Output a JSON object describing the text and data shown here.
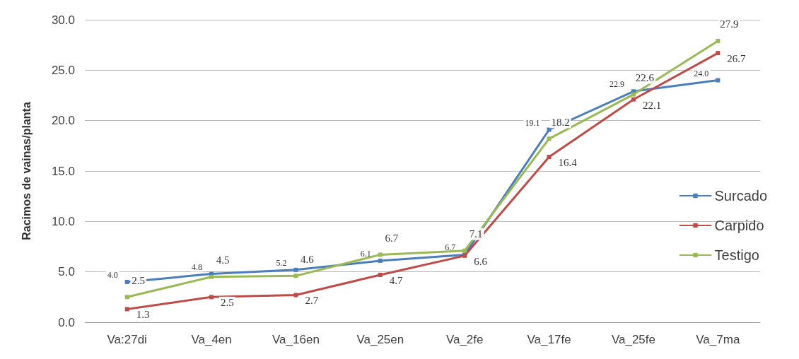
{
  "chart_data": {
    "type": "line",
    "ylabel": "Racimos de vainas/planta",
    "categories": [
      "Va:27di",
      "Va_4en",
      "Va_16en",
      "Va_25en",
      "Va_2fe",
      "Va_17fe",
      "Va_25fe",
      "Va_7ma"
    ],
    "series": [
      {
        "name": "Surcado",
        "color": "#4a7ebb",
        "values": [
          4.0,
          4.8,
          5.2,
          6.1,
          6.7,
          19.1,
          22.9,
          24.0
        ],
        "value_labels": [
          "4.0",
          "4.8",
          "5.2",
          "6.1",
          "6.7",
          "19.1",
          "22.9",
          "24.0"
        ]
      },
      {
        "name": "Carpido",
        "color": "#be4b48",
        "values": [
          1.3,
          2.5,
          2.7,
          4.7,
          6.6,
          16.4,
          22.1,
          26.7
        ],
        "value_labels": [
          "1.3",
          "2.5",
          "2.7",
          "4.7",
          "6.6",
          "16.4",
          "22.1",
          "26.7"
        ]
      },
      {
        "name": "Testigo",
        "color": "#98b954",
        "values": [
          2.5,
          4.5,
          4.6,
          6.7,
          7.1,
          18.2,
          22.6,
          27.9
        ],
        "value_labels": [
          "2.5",
          "4.5",
          "4.6",
          "6.7",
          "7.1",
          "18.2",
          "22.6",
          "27.9"
        ]
      }
    ],
    "ylim": [
      0,
      30
    ],
    "yticks": [
      {
        "value": 0,
        "label": "0.0"
      },
      {
        "value": 5,
        "label": "5.0"
      },
      {
        "value": 10,
        "label": "10.0"
      },
      {
        "value": 15,
        "label": "15.0"
      },
      {
        "value": 20,
        "label": "20.0"
      },
      {
        "value": 25,
        "label": "25.0"
      },
      {
        "value": 30,
        "label": "30.0"
      }
    ],
    "grid": "y",
    "legend": "right",
    "marker": "square",
    "line_style": "solid"
  }
}
